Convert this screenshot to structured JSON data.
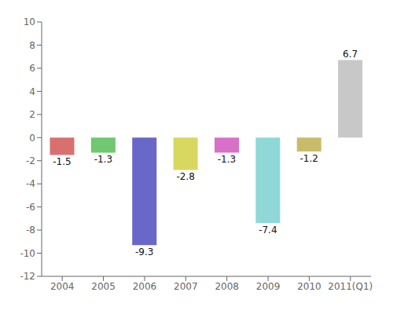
{
  "chart_data": {
    "type": "bar",
    "categories": [
      "2004",
      "2005",
      "2006",
      "2007",
      "2008",
      "2009",
      "2010",
      "2011(Q1)"
    ],
    "values": [
      -1.5,
      -1.3,
      -9.3,
      -2.8,
      -1.3,
      -7.4,
      -1.2,
      6.7
    ],
    "colors": [
      "#d97070",
      "#70c870",
      "#6868c8",
      "#d8d860",
      "#d870c8",
      "#90d8d8",
      "#c8bc68",
      "#c8c8c8"
    ],
    "ylim": [
      -12,
      10
    ],
    "yticks": [
      -12,
      -10,
      -8,
      -6,
      -4,
      -2,
      0,
      2,
      4,
      6,
      8,
      10
    ],
    "grid": false,
    "data_labels": true
  }
}
